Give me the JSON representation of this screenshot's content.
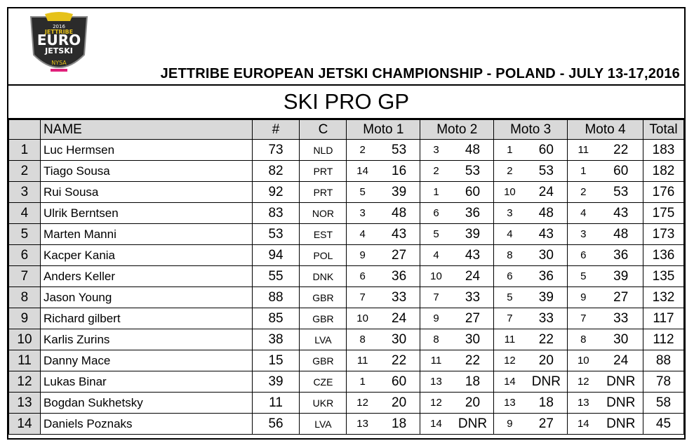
{
  "logo": {
    "year": "2016",
    "brand": "JETTRIBE",
    "line1": "EURO",
    "line2": "JETSKI",
    "line3": "NYSA"
  },
  "headline": "JETTRIBE EUROPEAN JETSKI CHAMPIONSHIP - POLAND - JULY 13-17,2016",
  "class_title": "SKI PRO GP",
  "columns": {
    "name": "NAME",
    "number": "#",
    "country": "C",
    "moto1": "Moto 1",
    "moto2": "Moto 2",
    "moto3": "Moto 3",
    "moto4": "Moto 4",
    "total": "Total"
  },
  "rows": [
    {
      "rank": "1",
      "name": "Luc Hermsen",
      "num": "73",
      "c": "NLD",
      "m1p": "2",
      "m1": "53",
      "m2p": "3",
      "m2": "48",
      "m3p": "1",
      "m3": "60",
      "m4p": "11",
      "m4": "22",
      "total": "183"
    },
    {
      "rank": "2",
      "name": "Tiago Sousa",
      "num": "82",
      "c": "PRT",
      "m1p": "14",
      "m1": "16",
      "m2p": "2",
      "m2": "53",
      "m3p": "2",
      "m3": "53",
      "m4p": "1",
      "m4": "60",
      "total": "182"
    },
    {
      "rank": "3",
      "name": "Rui Sousa",
      "num": "92",
      "c": "PRT",
      "m1p": "5",
      "m1": "39",
      "m2p": "1",
      "m2": "60",
      "m3p": "10",
      "m3": "24",
      "m4p": "2",
      "m4": "53",
      "total": "176"
    },
    {
      "rank": "4",
      "name": "Ulrik Berntsen",
      "num": "83",
      "c": "NOR",
      "m1p": "3",
      "m1": "48",
      "m2p": "6",
      "m2": "36",
      "m3p": "3",
      "m3": "48",
      "m4p": "4",
      "m4": "43",
      "total": "175"
    },
    {
      "rank": "5",
      "name": "Marten Manni",
      "num": "53",
      "c": "EST",
      "m1p": "4",
      "m1": "43",
      "m2p": "5",
      "m2": "39",
      "m3p": "4",
      "m3": "43",
      "m4p": "3",
      "m4": "48",
      "total": "173"
    },
    {
      "rank": "6",
      "name": "Kacper Kania",
      "num": "94",
      "c": "POL",
      "m1p": "9",
      "m1": "27",
      "m2p": "4",
      "m2": "43",
      "m3p": "8",
      "m3": "30",
      "m4p": "6",
      "m4": "36",
      "total": "136"
    },
    {
      "rank": "7",
      "name": "Anders Keller",
      "num": "55",
      "c": "DNK",
      "m1p": "6",
      "m1": "36",
      "m2p": "10",
      "m2": "24",
      "m3p": "6",
      "m3": "36",
      "m4p": "5",
      "m4": "39",
      "total": "135"
    },
    {
      "rank": "8",
      "name": "Jason Young",
      "num": "88",
      "c": "GBR",
      "m1p": "7",
      "m1": "33",
      "m2p": "7",
      "m2": "33",
      "m3p": "5",
      "m3": "39",
      "m4p": "9",
      "m4": "27",
      "total": "132"
    },
    {
      "rank": "9",
      "name": "Richard gilbert",
      "num": "85",
      "c": "GBR",
      "m1p": "10",
      "m1": "24",
      "m2p": "9",
      "m2": "27",
      "m3p": "7",
      "m3": "33",
      "m4p": "7",
      "m4": "33",
      "total": "117"
    },
    {
      "rank": "10",
      "name": "Karlis Zurins",
      "num": "38",
      "c": "LVA",
      "m1p": "8",
      "m1": "30",
      "m2p": "8",
      "m2": "30",
      "m3p": "11",
      "m3": "22",
      "m4p": "8",
      "m4": "30",
      "total": "112"
    },
    {
      "rank": "11",
      "name": "Danny Mace",
      "num": "15",
      "c": "GBR",
      "m1p": "11",
      "m1": "22",
      "m2p": "11",
      "m2": "22",
      "m3p": "12",
      "m3": "20",
      "m4p": "10",
      "m4": "24",
      "total": "88"
    },
    {
      "rank": "12",
      "name": "Lukas Binar",
      "num": "39",
      "c": "CZE",
      "m1p": "1",
      "m1": "60",
      "m2p": "13",
      "m2": "18",
      "m3p": "14",
      "m3": "DNR",
      "m4p": "12",
      "m4": "DNR",
      "total": "78"
    },
    {
      "rank": "13",
      "name": "Bogdan Sukhetsky",
      "num": "11",
      "c": "UKR",
      "m1p": "12",
      "m1": "20",
      "m2p": "12",
      "m2": "20",
      "m3p": "13",
      "m3": "18",
      "m4p": "13",
      "m4": "DNR",
      "total": "58"
    },
    {
      "rank": "14",
      "name": "Daniels Poznaks",
      "num": "56",
      "c": "LVA",
      "m1p": "13",
      "m1": "18",
      "m2p": "14",
      "m2": "DNR",
      "m3p": "9",
      "m3": "27",
      "m4p": "14",
      "m4": "DNR",
      "total": "45"
    }
  ],
  "colors": {
    "header_fill": "#d9d9d9",
    "border": "#000000",
    "logo_dark": "#2b2b2b",
    "logo_gold": "#e6c21a",
    "logo_pink": "#e0207a"
  }
}
